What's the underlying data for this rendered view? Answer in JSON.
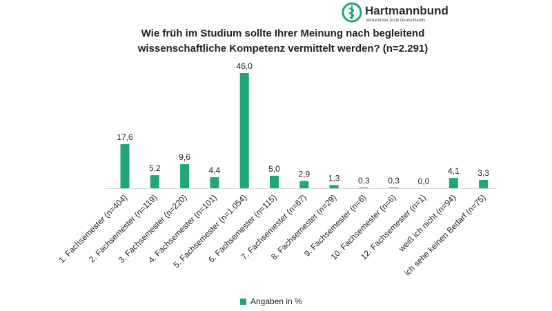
{
  "brand": {
    "name": "Hartmannbund",
    "tagline": "Verband der Ärzte Deutschlands",
    "color": "#1fa67a"
  },
  "chart_data": {
    "type": "bar",
    "title": "Wie früh im Studium sollte Ihrer Meinung nach begleitend wissenschaftliche Kompetenz vermittelt werden? (n=2.291)",
    "title_lines": [
      "Wie früh im Studium sollte Ihrer Meinung nach begleitend",
      "wissenschaftliche Kompetenz vermittelt werden? (n=2.291)"
    ],
    "categories": [
      "1. Fachsemester (n=404)",
      "2. Fachsemester (n=119)",
      "3. Fachsemester (n=220)",
      "4. Fachsemester (n=101)",
      "5. Fachsemester (n=1.054)",
      "6. Fachsemester (n=115)",
      "7. Fachsemester (n=67)",
      "8. Fachsemester (n=29)",
      "9. Fachsemester (n=6)",
      "10. Fachsemester (n=6)",
      "12. Fachsemester (n=1)",
      "weiß ich nicht (n=94)",
      "ich sehe keinen Bedarf (n=75)"
    ],
    "series": [
      {
        "name": "Angaben in %",
        "values": [
          17.6,
          5.2,
          9.6,
          4.4,
          46.0,
          5.0,
          2.9,
          1.3,
          0.3,
          0.3,
          0.0,
          4.1,
          3.3
        ],
        "labels": [
          "17,6",
          "5,2",
          "9,6",
          "4,4",
          "46,0",
          "5,0",
          "2,9",
          "1,3",
          "0,3",
          "0,3",
          "0,0",
          "4,1",
          "3,3"
        ],
        "color": "#1fa67a"
      }
    ],
    "xlabel": "",
    "ylabel": "",
    "ylim": [
      0,
      46
    ],
    "grid": false,
    "legend_position": "bottom"
  }
}
